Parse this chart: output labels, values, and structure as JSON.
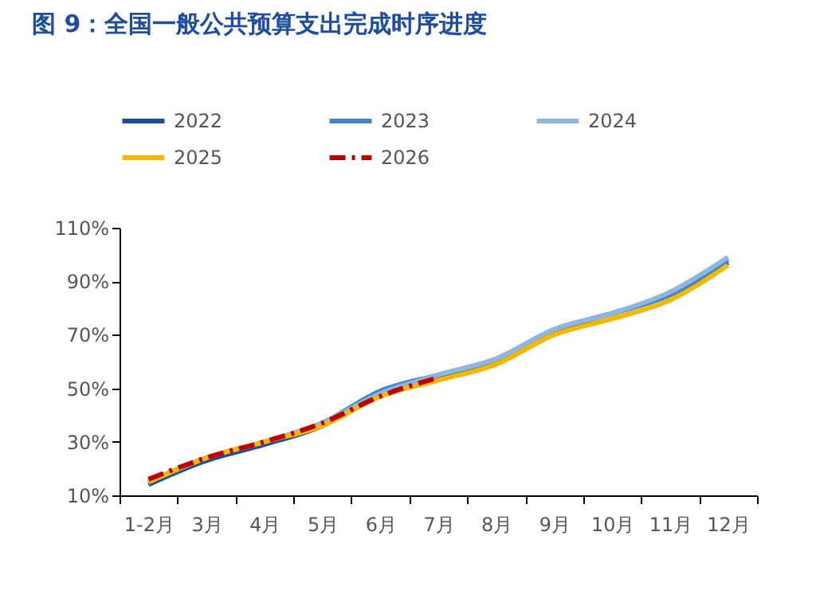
{
  "chart_data": {
    "type": "line",
    "title": "图 9：全国一般公共预算支出完成时序进度",
    "categories": [
      "1-2月",
      "3月",
      "4月",
      "5月",
      "6月",
      "7月",
      "8月",
      "9月",
      "10月",
      "11月",
      "12月"
    ],
    "series": [
      {
        "name": "2022",
        "color": "#1a4f9c",
        "values": [
          14,
          23,
          29,
          36,
          48,
          54,
          60,
          71,
          78,
          85,
          97
        ]
      },
      {
        "name": "2023",
        "color": "#3d85c8",
        "values": [
          15,
          24,
          30,
          37,
          49,
          55,
          61,
          72,
          78,
          85,
          98
        ]
      },
      {
        "name": "2024",
        "color": "#8fb6e0",
        "values": [
          15,
          24,
          30,
          37,
          48,
          55,
          61,
          72,
          78,
          86,
          99
        ]
      },
      {
        "name": "2025",
        "color": "#f5b800",
        "values": [
          15,
          24,
          30,
          36,
          47,
          53,
          59,
          70,
          76,
          83,
          96
        ]
      },
      {
        "name": "2026",
        "color": "#c00000",
        "line_style": "dashed",
        "values": [
          16,
          24,
          30,
          37,
          47,
          54,
          null,
          null,
          null,
          null,
          null
        ]
      }
    ],
    "ylim": [
      10,
      110
    ],
    "yticks": [
      {
        "value": 10,
        "label": "10%"
      },
      {
        "value": 30,
        "label": "30%"
      },
      {
        "value": 50,
        "label": "50%"
      },
      {
        "value": 70,
        "label": "70%"
      },
      {
        "value": 90,
        "label": "90%"
      },
      {
        "value": 110,
        "label": "110%"
      }
    ],
    "grid": false,
    "legend": "top",
    "marker": "none"
  }
}
